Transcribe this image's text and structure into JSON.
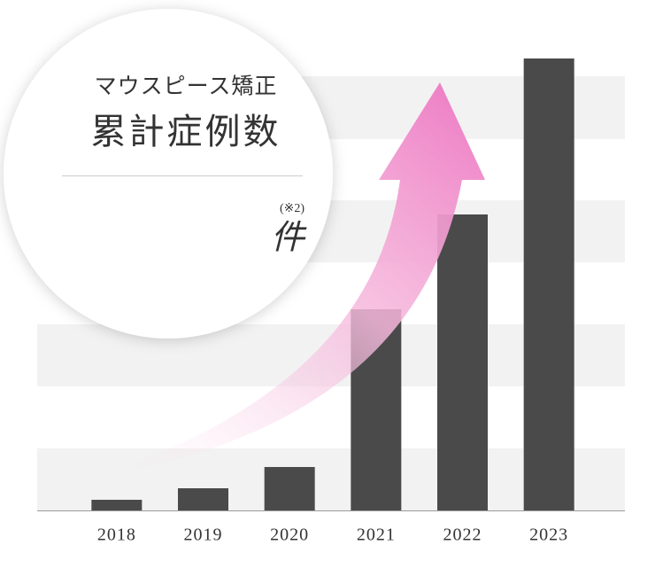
{
  "chart_data": {
    "type": "bar",
    "title": "マウスピース矯正",
    "subtitle": "累計症例数",
    "note": "(※2)",
    "unit": "件",
    "categories": [
      "2018",
      "2019",
      "2020",
      "2021",
      "2022",
      "2023"
    ],
    "values": [
      12,
      25,
      49,
      227,
      334,
      510
    ],
    "color": "#4a4a4a",
    "ylim": [
      0,
      560
    ]
  }
}
